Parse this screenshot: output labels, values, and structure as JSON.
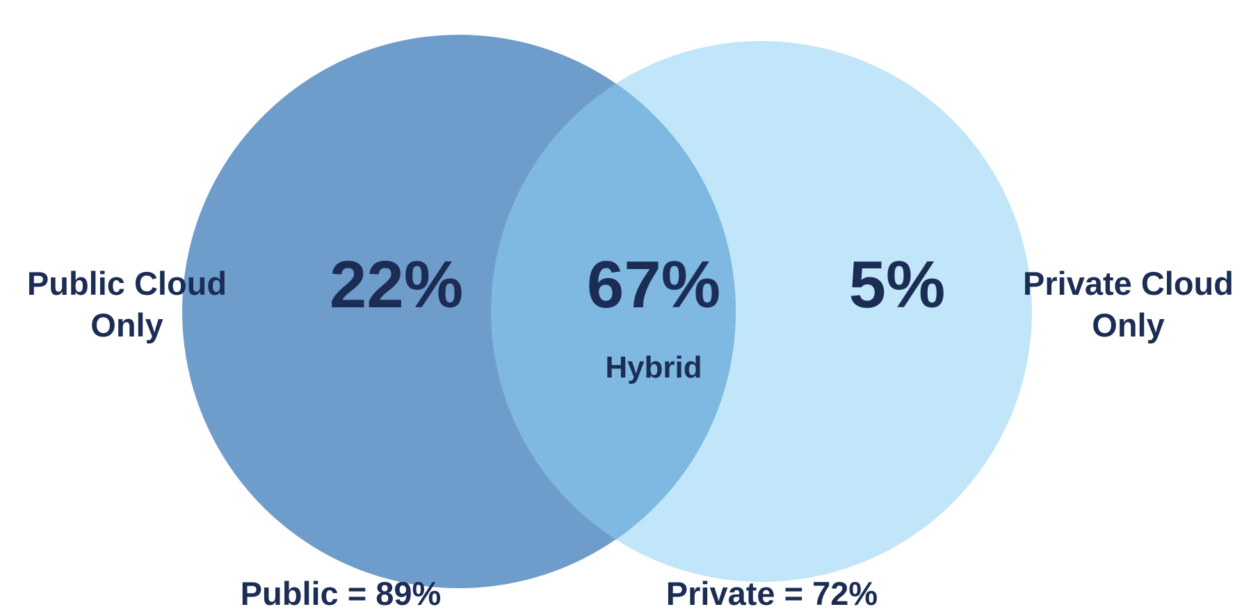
{
  "colors": {
    "public_circle": "#6f9dcb",
    "private_circle": "#c1e5f9",
    "overlap": "#7fb8e0",
    "text": "#1c2d55",
    "background": "#ffffff"
  },
  "public_only": {
    "label_line1": "Public Cloud",
    "label_line2": "Only",
    "percent": "22%"
  },
  "hybrid": {
    "percent": "67%",
    "label": "Hybrid"
  },
  "private_only": {
    "label_line1": "Private Cloud",
    "label_line2": "Only",
    "percent": "5%"
  },
  "totals": {
    "public": "Public = 89%",
    "private": "Private = 72%"
  }
}
